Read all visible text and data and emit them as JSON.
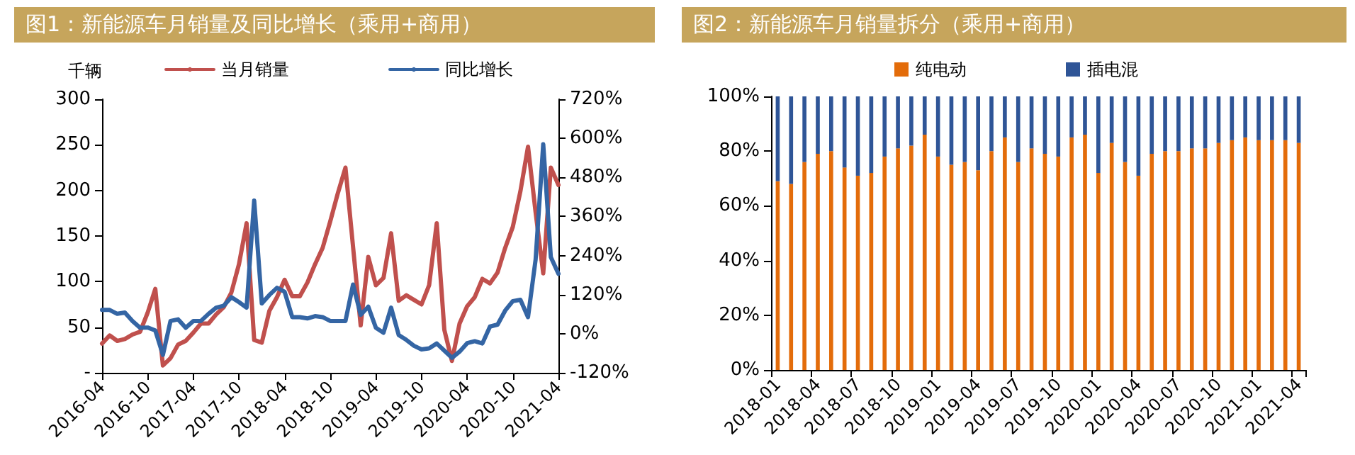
{
  "chart_data": [
    {
      "type": "line",
      "title": "图1：新能源车月销量及同比增长（乘用+商用）",
      "ylabel": "千辆",
      "categories": [
        "2016-04",
        null,
        null,
        null,
        null,
        null,
        "2016-10",
        null,
        null,
        null,
        null,
        null,
        "2017-04",
        null,
        null,
        null,
        null,
        null,
        "2017-10",
        null,
        null,
        null,
        null,
        null,
        "2018-04",
        null,
        null,
        null,
        null,
        null,
        "2018-10",
        null,
        null,
        null,
        null,
        null,
        "2019-04",
        null,
        null,
        null,
        null,
        null,
        "2019-10",
        null,
        null,
        null,
        null,
        null,
        "2020-04",
        null,
        null,
        null,
        null,
        null,
        "2020-10",
        null,
        null,
        null,
        null,
        null,
        "2021-04"
      ],
      "ylim": [
        0,
        300
      ],
      "yticks": [
        {
          "value": 0,
          "label": "-"
        },
        50,
        100,
        150,
        200,
        250,
        300
      ],
      "y2lim": [
        -120,
        720
      ],
      "y2ticks": [
        {
          "value": -120,
          "label": "-120%"
        },
        {
          "value": 0,
          "label": "0%"
        },
        {
          "value": 120,
          "label": "120%"
        },
        {
          "value": 240,
          "label": "240%"
        },
        {
          "value": 360,
          "label": "360%"
        },
        {
          "value": 480,
          "label": "480%"
        },
        {
          "value": 600,
          "label": "600%"
        },
        {
          "value": 720,
          "label": "720%"
        }
      ],
      "series": [
        {
          "name": "当月销量",
          "color": "#c0504d",
          "values": [
            32,
            41,
            35,
            37,
            42,
            45,
            66,
            92,
            8,
            16,
            31,
            35,
            44,
            54,
            54,
            64,
            72,
            88,
            119,
            164,
            36,
            33,
            68,
            83,
            102,
            84,
            84,
            99,
            119,
            137,
            166,
            197,
            225,
            138,
            52,
            127,
            96,
            104,
            153,
            79,
            85,
            80,
            75,
            96,
            164,
            47,
            13,
            54,
            73,
            83,
            103,
            98,
            110,
            137,
            160,
            199,
            248,
            176,
            109,
            225,
            206
          ]
        },
        {
          "name": "同比增长",
          "color": "#3465a4",
          "axis": "y2",
          "values": [
            73,
            73,
            61,
            65,
            39,
            18,
            19,
            10,
            -65,
            39,
            44,
            18,
            39,
            39,
            61,
            80,
            86,
            112,
            97,
            80,
            409,
            93,
            119,
            141,
            129,
            51,
            51,
            47,
            54,
            51,
            39,
            39,
            39,
            151,
            58,
            83,
            18,
            3,
            80,
            -4,
            -19,
            -37,
            -48,
            -45,
            -30,
            -52,
            -74,
            -55,
            -29,
            -23,
            -30,
            22,
            28,
            71,
            100,
            104,
            51,
            228,
            582,
            235,
            184
          ]
        }
      ],
      "legend": "top",
      "grid": false,
      "marker": "none",
      "line_style": "solid"
    },
    {
      "type": "bar",
      "title": "图2：新能源车月销量拆分（乘用+商用）",
      "stacked": true,
      "categories": [
        "2018-01",
        null,
        null,
        "2018-04",
        null,
        null,
        "2018-07",
        null,
        null,
        "2018-10",
        null,
        null,
        "2019-01",
        null,
        null,
        "2019-04",
        null,
        null,
        "2019-07",
        null,
        null,
        "2019-10",
        null,
        null,
        "2020-01",
        null,
        null,
        "2020-04",
        null,
        null,
        "2020-07",
        null,
        null,
        "2020-10",
        null,
        null,
        "2021-01",
        null,
        null,
        "2021-04"
      ],
      "ylim": [
        0,
        100
      ],
      "yticks": [
        {
          "value": 0,
          "label": "0%"
        },
        {
          "value": 20,
          "label": "20%"
        },
        {
          "value": 40,
          "label": "40%"
        },
        {
          "value": 60,
          "label": "60%"
        },
        {
          "value": 80,
          "label": "80%"
        },
        {
          "value": 100,
          "label": "100%"
        }
      ],
      "series": [
        {
          "name": "纯电动",
          "color": "#e36c0a",
          "values": [
            69,
            68,
            76,
            79,
            80,
            74,
            71,
            72,
            78,
            81,
            82,
            86,
            78,
            75,
            76,
            73,
            80,
            85,
            76,
            81,
            79,
            78,
            85,
            86,
            72,
            83,
            76,
            71,
            79,
            80,
            80,
            81,
            81,
            83,
            84,
            85,
            84,
            84,
            84,
            83
          ]
        },
        {
          "name": "插电混",
          "color": "#2f5597",
          "values": [
            31,
            32,
            24,
            21,
            20,
            26,
            29,
            28,
            22,
            19,
            18,
            14,
            22,
            25,
            24,
            27,
            20,
            15,
            24,
            19,
            21,
            22,
            15,
            14,
            28,
            17,
            24,
            29,
            21,
            20,
            20,
            19,
            19,
            17,
            16,
            15,
            16,
            16,
            16,
            17
          ]
        }
      ],
      "legend": "top",
      "grid": false
    }
  ]
}
